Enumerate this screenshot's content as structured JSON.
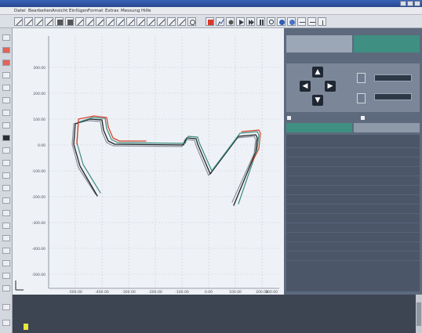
{
  "window": {
    "title": ""
  },
  "menu": [
    "Datei",
    "Bearbeiten",
    "Ansicht",
    "Einfügen",
    "Format",
    "Extras",
    "Messung",
    "Hilfe"
  ],
  "graph": {
    "y_ticks": [
      "300.00",
      "200.00",
      "100.00",
      "0.00",
      "-100.00",
      "-200.00",
      "-300.00",
      "-400.00",
      "-500.00"
    ],
    "x_ticks": [
      "-500.00",
      "-400.00",
      "-300.00",
      "-200.00",
      "-100.00",
      "0.00",
      "100.00",
      "200.00",
      "300.00"
    ],
    "colors": {
      "grid": "#c9cfd8",
      "trace_black": "#1f2328",
      "trace_red": "#d9442f",
      "trace_teal": "#3b8d7f",
      "trace_gray": "#8b9099"
    }
  },
  "right_panel": {
    "tabs": [
      "",
      ""
    ],
    "nav_title": "",
    "field_labels": [
      "",
      ""
    ],
    "fields": [
      "",
      ""
    ],
    "checkboxes": [
      "",
      ""
    ],
    "list_tabs": [
      "",
      ""
    ],
    "results": [
      {
        "label": "",
        "value": ""
      },
      {
        "label": "",
        "value": ""
      },
      {
        "label": "",
        "value": ""
      },
      {
        "label": "",
        "value": ""
      },
      {
        "label": "",
        "value": ""
      },
      {
        "label": "",
        "value": ""
      },
      {
        "label": "",
        "value": ""
      },
      {
        "label": "",
        "value": ""
      },
      {
        "label": "",
        "value": ""
      },
      {
        "label": "",
        "value": ""
      },
      {
        "label": "",
        "value": ""
      },
      {
        "label": "",
        "value": ""
      },
      {
        "label": "",
        "value": ""
      }
    ]
  },
  "log": {
    "lines": [
      "",
      "",
      ""
    ],
    "highlight": ""
  }
}
